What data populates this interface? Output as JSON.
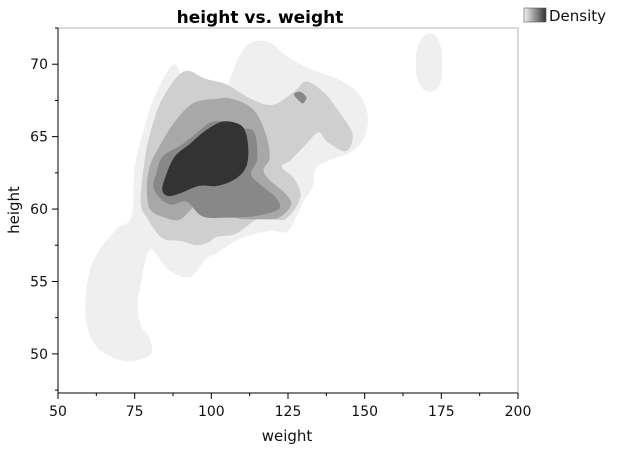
{
  "chart_data": {
    "type": "contour",
    "title": "height vs. weight",
    "xlabel": "weight",
    "ylabel": "height",
    "xlim": [
      50,
      200
    ],
    "ylim": [
      47.3,
      72.5
    ],
    "xticks": [
      50,
      75,
      100,
      125,
      150,
      175,
      200
    ],
    "yticks": [
      50,
      55,
      60,
      65,
      70
    ],
    "legend": {
      "label": "Density",
      "placement": "top-right"
    },
    "grid": false,
    "levels": [
      {
        "name": "level-1",
        "color": "#efefef",
        "polygons": [
          [
            [
              88,
              70
            ],
            [
              92,
              68
            ],
            [
              98,
              67
            ],
            [
              104,
              68
            ],
            [
              109,
              70.5
            ],
            [
              113,
              71.5
            ],
            [
              119,
              71.5
            ],
            [
              125,
              70.5
            ],
            [
              133,
              69.6
            ],
            [
              141,
              69
            ],
            [
              148,
              68
            ],
            [
              151,
              66.5
            ],
            [
              150,
              65
            ],
            [
              146,
              64
            ],
            [
              139,
              63.4
            ],
            [
              134,
              62.8
            ],
            [
              133,
              61.5
            ],
            [
              130,
              60.5
            ],
            [
              125,
              58.5
            ],
            [
              119,
              58.5
            ],
            [
              110,
              58
            ],
            [
              102,
              57
            ],
            [
              98,
              56.5
            ],
            [
              93,
              55.3
            ],
            [
              86,
              55.8
            ],
            [
              80,
              57.2
            ],
            [
              77,
              54.8
            ],
            [
              76,
              53.4
            ],
            [
              77,
              52
            ],
            [
              80,
              51
            ],
            [
              80,
              49.9
            ],
            [
              72,
              49.5
            ],
            [
              63,
              50.4
            ],
            [
              59,
              52.5
            ],
            [
              60,
              55.4
            ],
            [
              63,
              57
            ],
            [
              69,
              58.6
            ],
            [
              74,
              59.5
            ],
            [
              75,
              62.8
            ],
            [
              78,
              65.5
            ],
            [
              82,
              68
            ]
          ],
          [
            [
              167,
              71
            ],
            [
              169.5,
              72
            ],
            [
              173,
              72
            ],
            [
              175,
              71
            ],
            [
              175,
              69
            ],
            [
              173,
              68.2
            ],
            [
              169.5,
              68.2
            ],
            [
              167,
              69.2
            ]
          ]
        ]
      },
      {
        "name": "level-2",
        "color": "#cfcfcf",
        "polygons": [
          [
            [
              91,
              69.5
            ],
            [
              98,
              69
            ],
            [
              105,
              68.6
            ],
            [
              113,
              67.6
            ],
            [
              120,
              67.2
            ],
            [
              127,
              68.1
            ],
            [
              131,
              68.8
            ],
            [
              137,
              68
            ],
            [
              141,
              66.9
            ],
            [
              146,
              65.2
            ],
            [
              144,
              64
            ],
            [
              138,
              64.6
            ],
            [
              135,
              65.3
            ],
            [
              131,
              64.5
            ],
            [
              126,
              63.4
            ],
            [
              123,
              62.9
            ],
            [
              127,
              62.1
            ],
            [
              129,
              60.8
            ],
            [
              124,
              59.3
            ],
            [
              116,
              59.4
            ],
            [
              108,
              58.3
            ],
            [
              102,
              58.1
            ],
            [
              99,
              57.7
            ],
            [
              95,
              57.5
            ],
            [
              90,
              57.8
            ],
            [
              84,
              58
            ],
            [
              79,
              59.4
            ],
            [
              77,
              60.4
            ],
            [
              78,
              63
            ],
            [
              80,
              65.2
            ],
            [
              84,
              67.6
            ]
          ]
        ]
      },
      {
        "name": "level-3",
        "color": "#a8a8a8",
        "polygons": [
          [
            [
              83,
              64.3
            ],
            [
              88,
              66
            ],
            [
              94,
              67.3
            ],
            [
              101,
              67.6
            ],
            [
              107,
              67.6
            ],
            [
              114,
              66.8
            ],
            [
              118,
              65
            ],
            [
              119,
              63.5
            ],
            [
              117,
              62.7
            ],
            [
              119,
              62
            ],
            [
              124,
              61.1
            ],
            [
              126,
              60.3
            ],
            [
              122,
              59.4
            ],
            [
              116,
              59.3
            ],
            [
              108,
              59.4
            ],
            [
              100,
              60.3
            ],
            [
              96,
              60.5
            ],
            [
              90,
              59.3
            ],
            [
              85,
              59.4
            ],
            [
              80,
              60
            ],
            [
              79,
              61.5
            ],
            [
              80,
              63
            ]
          ]
        ]
      },
      {
        "name": "level-4",
        "color": "#888888",
        "polygons": [
          [
            [
              82,
              62.4
            ],
            [
              84,
              63.6
            ],
            [
              90,
              64.4
            ],
            [
              95,
              65.2
            ],
            [
              100,
              66
            ],
            [
              106,
              66
            ],
            [
              110,
              65.6
            ],
            [
              114,
              65.3
            ],
            [
              115,
              63.5
            ],
            [
              113,
              62.4
            ],
            [
              117,
              61.5
            ],
            [
              121,
              60.8
            ],
            [
              122,
              60
            ],
            [
              114,
              59.5
            ],
            [
              104,
              59.4
            ],
            [
              97,
              59.5
            ],
            [
              92,
              60.5
            ],
            [
              87,
              60.3
            ],
            [
              83,
              60.8
            ],
            [
              81,
              61.6
            ]
          ]
        ]
      },
      {
        "name": "level-5",
        "color": "#333333",
        "polygons": [
          [
            [
              84,
              61.3
            ],
            [
              85,
              62.2
            ],
            [
              88,
              63.6
            ],
            [
              93,
              64.5
            ],
            [
              98,
              65.4
            ],
            [
              103,
              66
            ],
            [
              107,
              66
            ],
            [
              110.5,
              65.6
            ],
            [
              112,
              64.4
            ],
            [
              111.5,
              63
            ],
            [
              108,
              62.1
            ],
            [
              102,
              61.6
            ],
            [
              96,
              61.6
            ],
            [
              90,
              61.1
            ],
            [
              86,
              60.9
            ]
          ]
        ]
      },
      {
        "name": "level-peak",
        "color": "#888888",
        "polygons": [
          [
            [
              127,
              67.9
            ],
            [
              129,
              68.1
            ],
            [
              131,
              67.7
            ],
            [
              130,
              67.3
            ],
            [
              129,
              67.4
            ]
          ]
        ]
      }
    ]
  }
}
